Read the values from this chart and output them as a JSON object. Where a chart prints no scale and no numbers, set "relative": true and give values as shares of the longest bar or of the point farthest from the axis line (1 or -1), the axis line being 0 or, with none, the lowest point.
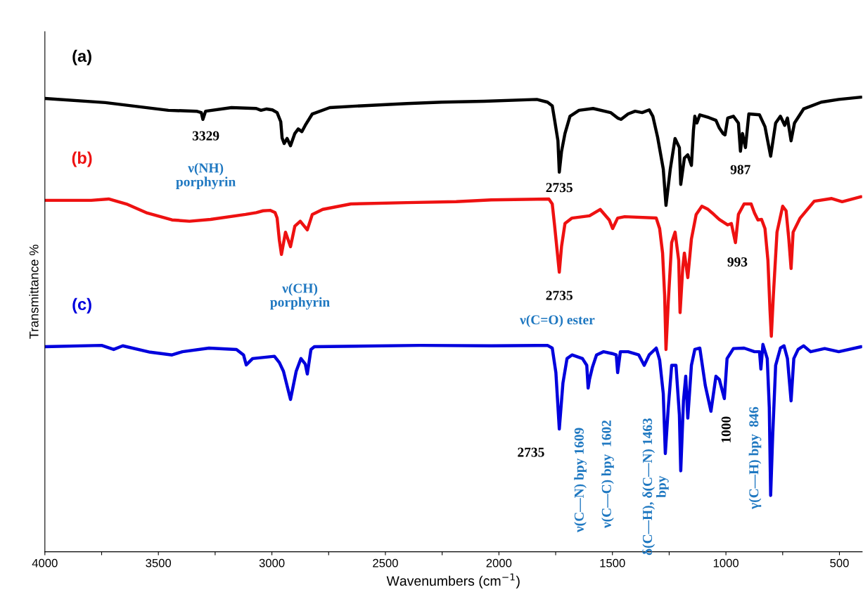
{
  "chart_data": {
    "type": "line",
    "relative": true,
    "xlabel": "Wavenumbers (cm$^{−1}$)",
    "ylabel": "Transmittance %",
    "xlim": [
      4000,
      400
    ],
    "xticks": [
      4000,
      {
        "value": 3750,
        "label": null
      },
      3500,
      {
        "value": 3250,
        "label": null
      },
      3000,
      {
        "value": 2750,
        "label": null
      },
      2500,
      {
        "value": 2250,
        "label": null
      },
      2000,
      {
        "value": 1750,
        "label": null
      },
      1500,
      {
        "value": 1250,
        "label": null
      },
      1000,
      {
        "value": 750,
        "label": null
      },
      500
    ],
    "grid": false,
    "legend": false,
    "marker": "none",
    "line_style": "solid",
    "series": [
      {
        "name": "(a)",
        "color": "#000000",
        "x": [
          4000,
          3734,
          3456,
          3332,
          3311,
          3304,
          3292,
          3178,
          3069,
          3048,
          3023,
          2998,
          2977,
          2961,
          2955,
          2946,
          2933,
          2918,
          2899,
          2884,
          2868,
          2853,
          2822,
          2745,
          2606,
          2405,
          2250,
          2065,
          1833,
          1786,
          1765,
          1755,
          1740,
          1734,
          1724,
          1709,
          1687,
          1647,
          1585,
          1508,
          1477,
          1462,
          1431,
          1400,
          1369,
          1338,
          1322,
          1301,
          1276,
          1264,
          1245,
          1224,
          1205,
          1199,
          1183,
          1168,
          1152,
          1143,
          1137,
          1128,
          1115,
          1075,
          1044,
          1029,
          1013,
          1004,
          992,
          967,
          945,
          936,
          927,
          914,
          899,
          852,
          828,
          803,
          781,
          760,
          741,
          729,
          713,
          698,
          658,
          580,
          503,
          404
        ],
        "values": [
          0.997,
          0.988,
          0.971,
          0.969,
          0.966,
          0.951,
          0.969,
          0.977,
          0.975,
          0.971,
          0.974,
          0.972,
          0.966,
          0.946,
          0.91,
          0.898,
          0.909,
          0.893,
          0.92,
          0.93,
          0.924,
          0.938,
          0.963,
          0.977,
          0.981,
          0.986,
          0.989,
          0.991,
          0.995,
          0.989,
          0.981,
          0.951,
          0.904,
          0.835,
          0.881,
          0.92,
          0.958,
          0.971,
          0.975,
          0.966,
          0.954,
          0.951,
          0.963,
          0.969,
          0.966,
          0.972,
          0.958,
          0.912,
          0.842,
          0.762,
          0.842,
          0.909,
          0.889,
          0.808,
          0.866,
          0.873,
          0.85,
          0.927,
          0.958,
          0.943,
          0.961,
          0.955,
          0.949,
          0.932,
          0.92,
          0.917,
          0.954,
          0.958,
          0.943,
          0.881,
          0.92,
          0.889,
          0.963,
          0.961,
          0.935,
          0.87,
          0.943,
          0.958,
          0.938,
          0.954,
          0.904,
          0.943,
          0.974,
          0.989,
          0.995,
          1.0
        ]
      },
      {
        "name": "(b)",
        "color": "#ee1111",
        "x": [
          4000,
          3796,
          3719,
          3641,
          3549,
          3440,
          3363,
          3270,
          3116,
          3069,
          3039,
          3008,
          2986,
          2977,
          2967,
          2958,
          2940,
          2918,
          2899,
          2875,
          2844,
          2822,
          2776,
          2652,
          2405,
          2188,
          2034,
          1780,
          1765,
          1755,
          1734,
          1724,
          1709,
          1678,
          1601,
          1554,
          1514,
          1499,
          1477,
          1446,
          1307,
          1292,
          1279,
          1270,
          1264,
          1254,
          1239,
          1224,
          1208,
          1202,
          1190,
          1183,
          1168,
          1152,
          1131,
          1106,
          1081,
          1060,
          1029,
          992,
          976,
          958,
          945,
          920,
          889,
          874,
          859,
          843,
          828,
          815,
          806,
          800,
          791,
          775,
          750,
          735,
          723,
          713,
          704,
          673,
          611,
          534,
          488,
          404
        ],
        "values": [
          0.773,
          0.773,
          0.776,
          0.765,
          0.745,
          0.73,
          0.727,
          0.731,
          0.742,
          0.746,
          0.75,
          0.751,
          0.746,
          0.734,
          0.685,
          0.654,
          0.703,
          0.671,
          0.716,
          0.727,
          0.708,
          0.742,
          0.753,
          0.765,
          0.768,
          0.77,
          0.774,
          0.776,
          0.765,
          0.719,
          0.615,
          0.672,
          0.722,
          0.734,
          0.739,
          0.753,
          0.73,
          0.711,
          0.734,
          0.737,
          0.734,
          0.711,
          0.657,
          0.564,
          0.445,
          0.549,
          0.68,
          0.703,
          0.641,
          0.526,
          0.626,
          0.657,
          0.603,
          0.688,
          0.742,
          0.76,
          0.754,
          0.745,
          0.731,
          0.719,
          0.722,
          0.68,
          0.742,
          0.765,
          0.765,
          0.745,
          0.73,
          0.731,
          0.711,
          0.641,
          0.533,
          0.474,
          0.564,
          0.703,
          0.76,
          0.75,
          0.688,
          0.623,
          0.703,
          0.734,
          0.771,
          0.777,
          0.77,
          0.781
        ]
      },
      {
        "name": "(c)",
        "color": "#0000dd",
        "x": [
          4000,
          3750,
          3697,
          3657,
          3536,
          3440,
          3394,
          3277,
          3156,
          3125,
          3113,
          3085,
          2989,
          2967,
          2949,
          2918,
          2893,
          2872,
          2853,
          2844,
          2828,
          2813,
          2349,
          2034,
          1786,
          1765,
          1749,
          1734,
          1718,
          1700,
          1678,
          1632,
          1613,
          1607,
          1601,
          1588,
          1570,
          1539,
          1502,
          1483,
          1477,
          1465,
          1431,
          1384,
          1360,
          1338,
          1307,
          1292,
          1276,
          1267,
          1254,
          1239,
          1220,
          1205,
          1199,
          1187,
          1177,
          1168,
          1152,
          1137,
          1115,
          1091,
          1066,
          1044,
          1029,
          1007,
          995,
          967,
          920,
          874,
          852,
          846,
          837,
          818,
          809,
          803,
          794,
          781,
          760,
          744,
          729,
          713,
          701,
          682,
          658,
          627,
          565,
          503,
          404
        ],
        "values": [
          0.451,
          0.454,
          0.445,
          0.453,
          0.439,
          0.433,
          0.44,
          0.448,
          0.445,
          0.433,
          0.411,
          0.425,
          0.43,
          0.416,
          0.397,
          0.335,
          0.397,
          0.425,
          0.413,
          0.391,
          0.445,
          0.451,
          0.454,
          0.453,
          0.454,
          0.448,
          0.394,
          0.27,
          0.371,
          0.425,
          0.433,
          0.425,
          0.41,
          0.36,
          0.379,
          0.406,
          0.433,
          0.44,
          0.436,
          0.433,
          0.394,
          0.44,
          0.44,
          0.433,
          0.41,
          0.433,
          0.448,
          0.422,
          0.348,
          0.216,
          0.317,
          0.41,
          0.41,
          0.301,
          0.178,
          0.332,
          0.386,
          0.294,
          0.41,
          0.445,
          0.448,
          0.366,
          0.309,
          0.386,
          0.379,
          0.337,
          0.425,
          0.447,
          0.448,
          0.44,
          0.44,
          0.402,
          0.456,
          0.425,
          0.317,
          0.124,
          0.255,
          0.41,
          0.448,
          0.453,
          0.425,
          0.332,
          0.425,
          0.445,
          0.453,
          0.44,
          0.447,
          0.44,
          0.451
        ]
      }
    ],
    "annotations": [
      {
        "text": "3329",
        "x": 3304,
        "y": 0.951
      },
      "ν(NH)\nporphyrin",
      {
        "text": "2735",
        "x": 1734,
        "y": 0.835
      },
      {
        "text": "987",
        "x": 936,
        "y": 0.881
      },
      {
        "text": "ν(CH)\nporphyrin",
        "x": 2958,
        "y": 0.654
      },
      {
        "text": "2735",
        "x": 1734,
        "y": 0.615
      },
      "ν(C=O) ester",
      {
        "text": "993",
        "x": 958,
        "y": 0.68
      },
      {
        "text": "2735",
        "x": 1734,
        "y": 0.27
      },
      {
        "text": "ν(C—N) bpy 1609",
        "x": 1607,
        "y": 0.36
      },
      "ν(C—C) bpy  1602",
      "δ(C—H), δ(C—N) 1463\nbpy",
      {
        "text": "1000",
        "x": 1007,
        "y": 0.337
      },
      {
        "text": "γ(C—H) bpy  846",
        "x": 846,
        "y": 0.402
      }
    ]
  }
}
